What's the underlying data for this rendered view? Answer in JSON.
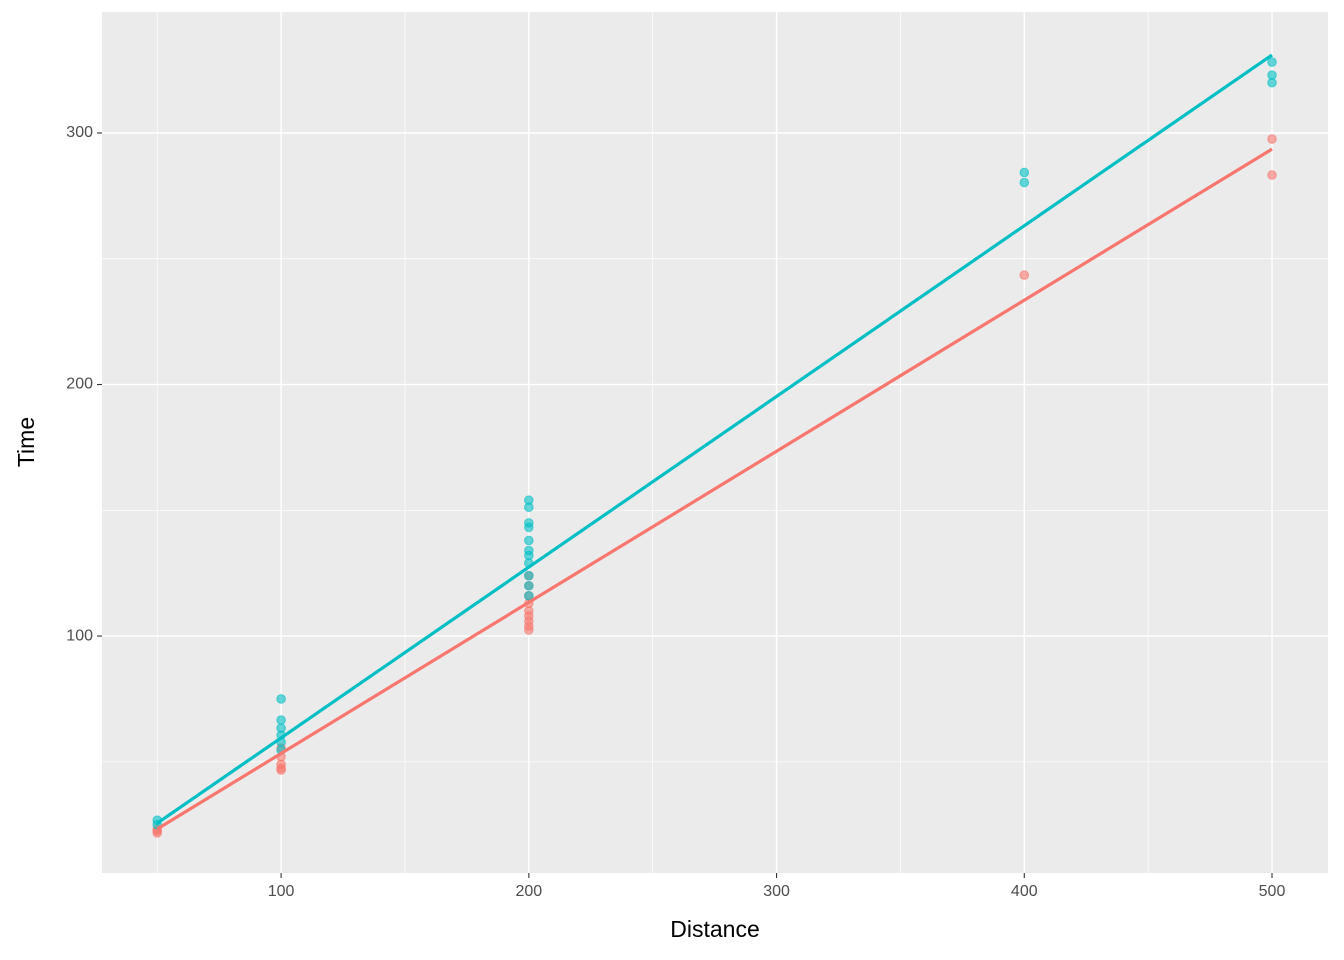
{
  "chart_data": {
    "type": "scatter",
    "xlabel": "Distance",
    "ylabel": "Time",
    "xlim": [
      27.7,
      522.6
    ],
    "ylim": [
      5.8,
      348.1
    ],
    "xticks": [
      100,
      200,
      300,
      400,
      500
    ],
    "yticks": [
      100,
      200,
      300
    ],
    "xminor": [
      50,
      150,
      250,
      350,
      450
    ],
    "yminor": [
      50,
      150,
      250
    ],
    "grid": true,
    "background": "#ebebeb",
    "series": [
      {
        "color": "#f8766d",
        "x": [
          50,
          50,
          50,
          100,
          100,
          100,
          100,
          100,
          200,
          200,
          200,
          200,
          200,
          200,
          200,
          200,
          200,
          400,
          500,
          500
        ],
        "values": [
          21.7,
          22.5,
          23.3,
          55.5,
          52,
          49,
          47.5,
          46.7,
          102.4,
          104,
          106,
          108,
          110,
          113,
          116,
          120,
          124,
          243.5,
          297.6,
          283.3
        ],
        "fit_x": [
          50,
          500
        ],
        "fit_values": [
          23.3,
          293.6
        ]
      },
      {
        "color": "#00bfc4",
        "x": [
          50,
          50,
          100,
          100,
          100,
          100,
          100,
          100,
          200,
          200,
          200,
          200,
          200,
          200,
          200,
          200,
          200,
          200,
          200,
          400,
          400,
          500,
          500,
          500
        ],
        "values": [
          26.8,
          25,
          75,
          66.6,
          63.4,
          60.6,
          57.8,
          54.7,
          154,
          151.2,
          145,
          143.2,
          138,
          134,
          132,
          129,
          124,
          120,
          116,
          284.3,
          280.3,
          328.2,
          323,
          320
        ],
        "fit_x": [
          50,
          500
        ],
        "fit_values": [
          25.6,
          331
        ]
      }
    ]
  }
}
